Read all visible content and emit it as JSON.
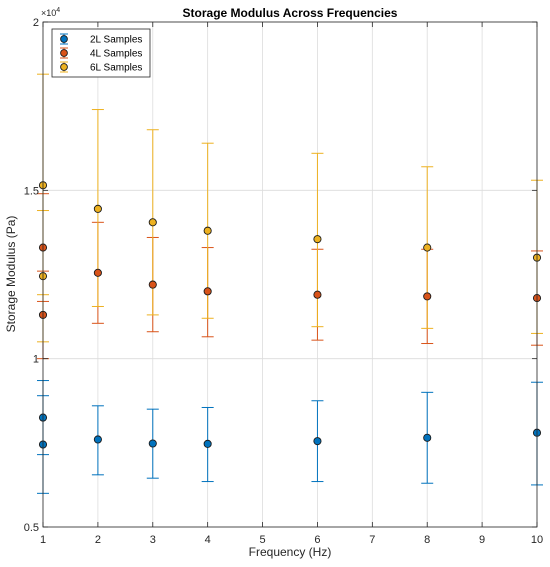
{
  "chart_data": {
    "type": "scatter",
    "title": "Storage Modulus Across Frequencies",
    "xlabel": "Frequency (Hz)",
    "ylabel": "Storage Modulus (Pa)",
    "y_exponent_label": "×10",
    "y_exponent_power": "4",
    "xlim": [
      1,
      10
    ],
    "ylim": [
      5000,
      20000
    ],
    "x_ticks": [
      1,
      2,
      3,
      4,
      5,
      6,
      7,
      8,
      9,
      10
    ],
    "x_tick_labels": [
      "1",
      "2",
      "3",
      "4",
      "5",
      "6",
      "7",
      "8",
      "9",
      "10"
    ],
    "y_ticks": [
      5000,
      10000,
      15000,
      20000
    ],
    "y_tick_labels": [
      "0.5",
      "1",
      "1.5",
      "2"
    ],
    "grid": true,
    "legend_position": "top-left",
    "series": [
      {
        "name": "2L Samples",
        "color": "#0072BD",
        "points": [
          {
            "x": 1,
            "y": 7450,
            "lo": 6000,
            "hi": 8900
          },
          {
            "x": 1,
            "y": 8250,
            "lo": 7150,
            "hi": 9350
          },
          {
            "x": 2,
            "y": 7600,
            "lo": 6550,
            "hi": 8600
          },
          {
            "x": 3,
            "y": 7480,
            "lo": 6450,
            "hi": 8500
          },
          {
            "x": 4,
            "y": 7470,
            "lo": 6350,
            "hi": 8550
          },
          {
            "x": 6,
            "y": 7550,
            "lo": 6350,
            "hi": 8750
          },
          {
            "x": 8,
            "y": 7650,
            "lo": 6300,
            "hi": 9000
          },
          {
            "x": 10,
            "y": 7800,
            "lo": 6250,
            "hi": 9300
          }
        ]
      },
      {
        "name": "4L Samples",
        "color": "#D95319",
        "points": [
          {
            "x": 1,
            "y": 11300,
            "lo": 10000,
            "hi": 12600
          },
          {
            "x": 1,
            "y": 13300,
            "lo": 11700,
            "hi": 14900
          },
          {
            "x": 2,
            "y": 12550,
            "lo": 11050,
            "hi": 14050
          },
          {
            "x": 3,
            "y": 12200,
            "lo": 10800,
            "hi": 13600
          },
          {
            "x": 4,
            "y": 12000,
            "lo": 10650,
            "hi": 13300
          },
          {
            "x": 6,
            "y": 11900,
            "lo": 10550,
            "hi": 13250
          },
          {
            "x": 8,
            "y": 11850,
            "lo": 10450,
            "hi": 13250
          },
          {
            "x": 10,
            "y": 11800,
            "lo": 10400,
            "hi": 13200
          }
        ]
      },
      {
        "name": "6L Samples",
        "color": "#EDB120",
        "points": [
          {
            "x": 1,
            "y": 12450,
            "lo": 10500,
            "hi": 14400
          },
          {
            "x": 1,
            "y": 15150,
            "lo": 11900,
            "hi": 18450
          },
          {
            "x": 2,
            "y": 14450,
            "lo": 11550,
            "hi": 17400
          },
          {
            "x": 3,
            "y": 14050,
            "lo": 11300,
            "hi": 16800
          },
          {
            "x": 4,
            "y": 13800,
            "lo": 11200,
            "hi": 16400
          },
          {
            "x": 6,
            "y": 13550,
            "lo": 10950,
            "hi": 16100
          },
          {
            "x": 8,
            "y": 13300,
            "lo": 10900,
            "hi": 15700
          },
          {
            "x": 10,
            "y": 13000,
            "lo": 10750,
            "hi": 15300
          }
        ]
      }
    ]
  }
}
